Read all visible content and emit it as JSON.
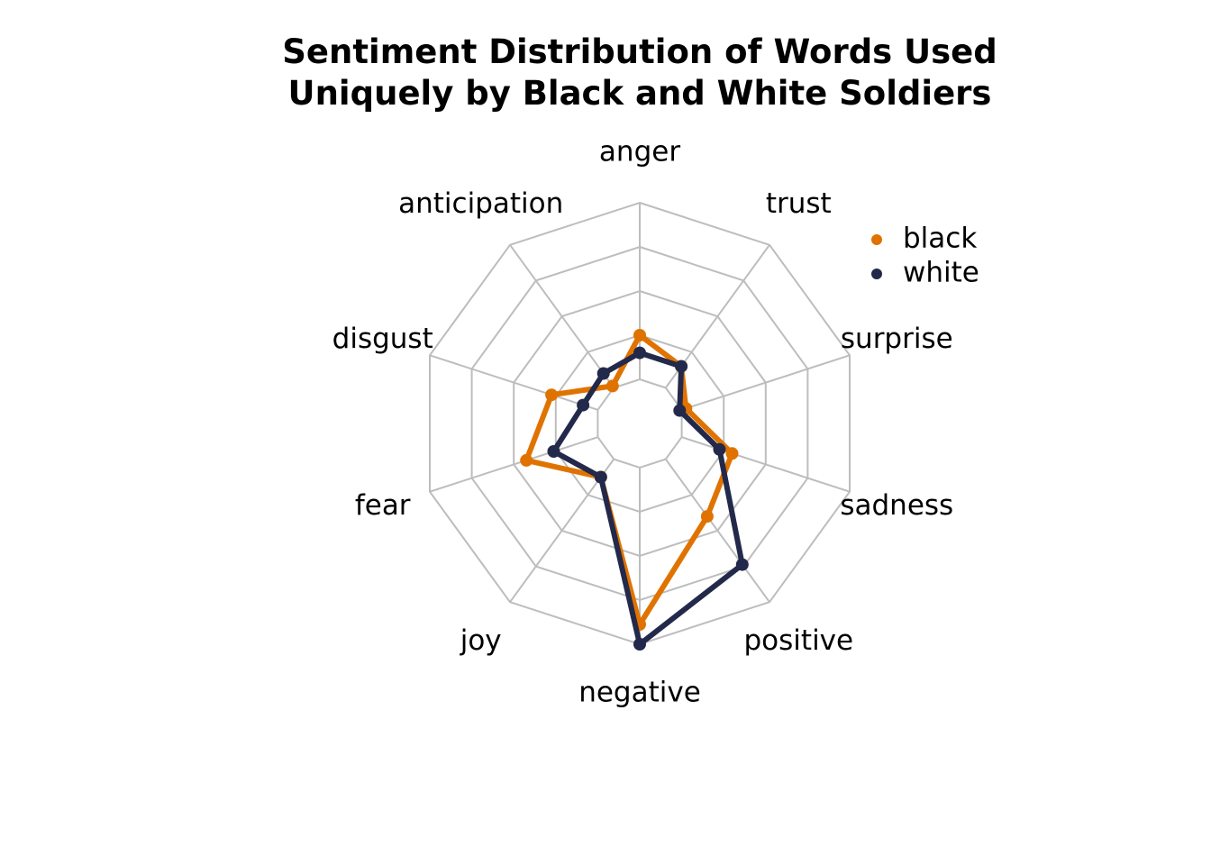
{
  "chart_data": {
    "type": "radar",
    "title": [
      "Sentiment Distribution of Words Used",
      "Uniquely by Black and White Soldiers"
    ],
    "categories": [
      "anger",
      "trust",
      "surprise",
      "sadness",
      "positive",
      "negative",
      "joy",
      "fear",
      "disgust",
      "anticipation"
    ],
    "rlim": [
      0,
      1
    ],
    "grid_levels": 5,
    "grid": true,
    "legend_position": "top-right",
    "series": [
      {
        "name": "black",
        "color": "#E07300",
        "values": [
          0.4,
          0.32,
          0.22,
          0.44,
          0.52,
          0.91,
          0.3,
          0.54,
          0.42,
          0.21
        ]
      },
      {
        "name": "white",
        "color": "#23294A",
        "values": [
          0.32,
          0.32,
          0.19,
          0.38,
          0.79,
          1.0,
          0.3,
          0.41,
          0.27,
          0.28
        ]
      }
    ]
  }
}
